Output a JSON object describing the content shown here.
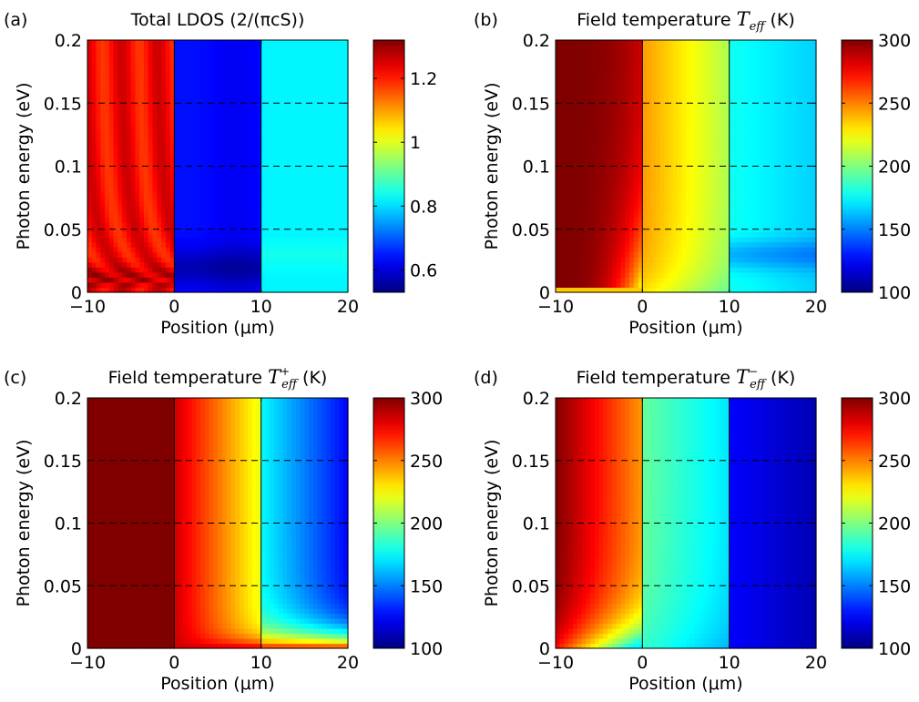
{
  "chart_data": [
    {
      "type": "heatmap",
      "panel_label": "(a)",
      "title": "Total LDOS (2/(πcS))",
      "title_parts": [],
      "xlabel": "Position (μm)",
      "ylabel": "Photon energy (eV)",
      "xlim": [
        -10,
        20
      ],
      "ylim": [
        0,
        0.2
      ],
      "xticks": [
        "−10",
        "0",
        "10",
        "20"
      ],
      "yticks": [
        "0",
        "0.05",
        "0.1",
        "0.15",
        "0.2"
      ],
      "clim": [
        0.53,
        1.32
      ],
      "colorbar_ticks": [
        "0.6",
        "0.8",
        "1",
        "1.2"
      ],
      "colorbar_values": [
        0.6,
        0.8,
        1.0,
        1.2
      ],
      "colormap": "jet",
      "dashed_lines_y": [
        0.05,
        0.1,
        0.15
      ],
      "boundaries_x": [
        0,
        10
      ],
      "regions": [
        {
          "x": [
            -10,
            0
          ],
          "value": 1.22,
          "description": "red, with oscillating fringes and a maximum near 0.01 eV"
        },
        {
          "x": [
            0,
            10
          ],
          "value": 0.63,
          "description": "blue, darkest near 0.02 eV"
        },
        {
          "x": [
            10,
            20
          ],
          "value": 0.82,
          "description": "light blue"
        }
      ]
    },
    {
      "type": "heatmap",
      "panel_label": "(b)",
      "title": "",
      "title_parts": [
        "Field temperature ",
        "T",
        "eff",
        " (K)"
      ],
      "superscript": "",
      "xlabel": "Position (μm)",
      "ylabel": "Photon energy (eV)",
      "xlim": [
        -10,
        20
      ],
      "ylim": [
        0,
        0.2
      ],
      "xticks": [
        "−10",
        "0",
        "10",
        "20"
      ],
      "yticks": [
        "0",
        "0.05",
        "0.1",
        "0.15",
        "0.2"
      ],
      "clim": [
        100,
        300
      ],
      "colorbar_ticks": [
        "100",
        "150",
        "200",
        "250",
        "300"
      ],
      "colorbar_values": [
        100,
        150,
        200,
        250,
        300
      ],
      "colormap": "jet",
      "dashed_lines_y": [
        0.05,
        0.1,
        0.15
      ],
      "boundaries_x": [
        0,
        10
      ],
      "regions": [
        {
          "x": [
            -10,
            0
          ],
          "value_range": [
            260,
            300
          ],
          "description": "dark red decreasing toward x=0; yellow near 0 eV"
        },
        {
          "x": [
            0,
            10
          ],
          "value_range": [
            210,
            245
          ],
          "description": "orange to yellow-green"
        },
        {
          "x": [
            10,
            20
          ],
          "value_range": [
            160,
            190
          ],
          "description": "cyan"
        }
      ]
    },
    {
      "type": "heatmap",
      "panel_label": "(c)",
      "title": "",
      "title_parts": [
        "Field temperature ",
        "T",
        "eff",
        " (K)"
      ],
      "superscript": "+",
      "xlabel": "Position (μm)",
      "ylabel": "Photon energy (eV)",
      "xlim": [
        -10,
        20
      ],
      "ylim": [
        0,
        0.2
      ],
      "xticks": [
        "−10",
        "0",
        "10",
        "20"
      ],
      "yticks": [
        "0",
        "0.05",
        "0.1",
        "0.15",
        "0.2"
      ],
      "clim": [
        100,
        300
      ],
      "colorbar_ticks": [
        "100",
        "150",
        "200",
        "250",
        "300"
      ],
      "colorbar_values": [
        100,
        150,
        200,
        250,
        300
      ],
      "colormap": "jet",
      "dashed_lines_y": [
        0.05,
        0.1,
        0.15
      ],
      "boundaries_x": [
        0,
        10
      ],
      "regions": [
        {
          "x": [
            -10,
            0
          ],
          "value": 300,
          "description": "uniform dark red"
        },
        {
          "x": [
            0,
            10
          ],
          "value_range": [
            220,
            280
          ],
          "description": "red to yellow"
        },
        {
          "x": [
            10,
            20
          ],
          "value_range": [
            110,
            180
          ],
          "description": "cyan to blue; orange near 0 eV"
        }
      ]
    },
    {
      "type": "heatmap",
      "panel_label": "(d)",
      "title": "",
      "title_parts": [
        "Field temperature ",
        "T",
        "eff",
        " (K)"
      ],
      "superscript": "−",
      "xlabel": "Position (μm)",
      "ylabel": "Photon energy (eV)",
      "xlim": [
        -10,
        20
      ],
      "ylim": [
        0,
        0.2
      ],
      "xticks": [
        "−10",
        "0",
        "10",
        "20"
      ],
      "yticks": [
        "0",
        "0.05",
        "0.1",
        "0.15",
        "0.2"
      ],
      "clim": [
        100,
        300
      ],
      "colorbar_ticks": [
        "100",
        "150",
        "200",
        "250",
        "300"
      ],
      "colorbar_values": [
        100,
        150,
        200,
        250,
        300
      ],
      "colormap": "jet",
      "dashed_lines_y": [
        0.05,
        0.1,
        0.15
      ],
      "boundaries_x": [
        0,
        10
      ],
      "regions": [
        {
          "x": [
            -10,
            0
          ],
          "value_range": [
            240,
            300
          ],
          "description": "dark red to orange; cyan near 0 eV"
        },
        {
          "x": [
            0,
            10
          ],
          "value_range": [
            170,
            195
          ],
          "description": "green-cyan"
        },
        {
          "x": [
            10,
            20
          ],
          "value_range": [
            105,
            130
          ],
          "description": "dark blue"
        }
      ]
    }
  ]
}
